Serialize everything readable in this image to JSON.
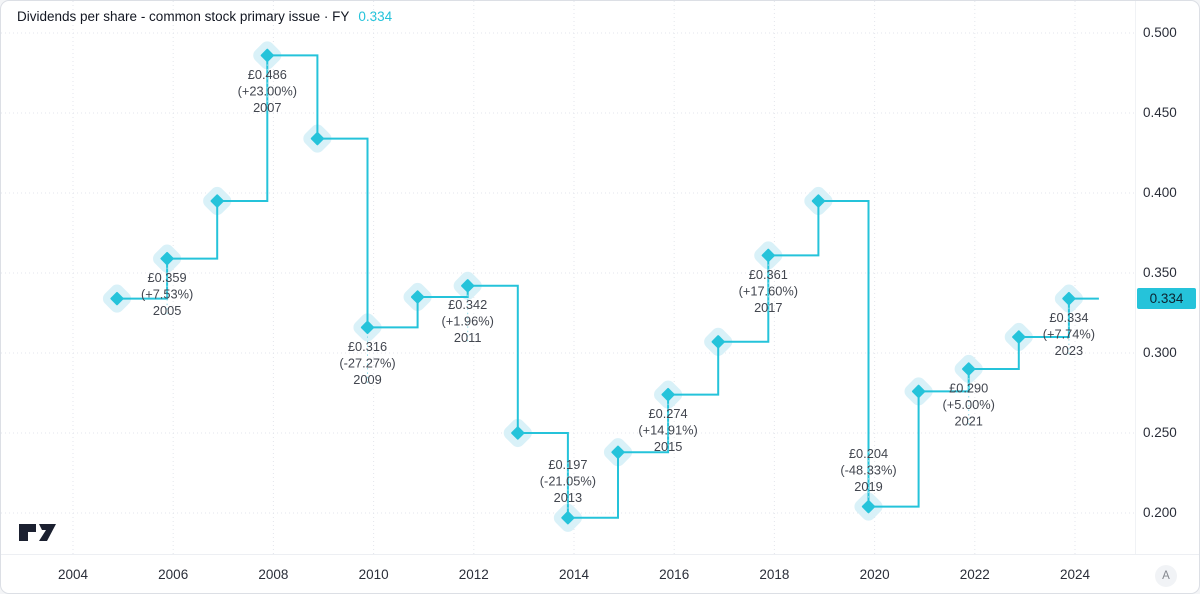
{
  "header": {
    "title": "Dividends per share - common stock primary issue · FY",
    "last_value": "0.334"
  },
  "chart_data": {
    "type": "line",
    "subtype": "step-line-with-diamond-markers",
    "title": "Dividends per share - common stock primary issue · FY",
    "currency": "£",
    "xlabel": "",
    "ylabel": "",
    "grid": "dotted-both-axes",
    "legend_position": "none",
    "ylim": [
      0.174,
      0.52
    ],
    "xlim_years": [
      2003.1,
      2024.6
    ],
    "series": [
      {
        "name": "Dividends per share FY",
        "x": [
          2004,
          2005,
          2006,
          2007,
          2008,
          2009,
          2010,
          2011,
          2012,
          2013,
          2014,
          2015,
          2016,
          2017,
          2018,
          2019,
          2020,
          2021,
          2022,
          2023
        ],
        "values": [
          0.334,
          0.359,
          0.395,
          0.486,
          0.434,
          0.316,
          0.335,
          0.342,
          0.25,
          0.197,
          0.238,
          0.274,
          0.307,
          0.361,
          0.395,
          0.204,
          0.276,
          0.29,
          0.31,
          0.334
        ]
      }
    ],
    "line_extends_right": true,
    "annotations": [
      {
        "year": "2005",
        "value_label": "£0.359",
        "change_label": "(+7.53%)",
        "side": "below"
      },
      {
        "year": "2007",
        "value_label": "£0.486",
        "change_label": "(+23.00%)",
        "side": "below"
      },
      {
        "year": "2009",
        "value_label": "£0.316",
        "change_label": "(-27.27%)",
        "side": "below"
      },
      {
        "year": "2011",
        "value_label": "£0.342",
        "change_label": "(+1.96%)",
        "side": "below"
      },
      {
        "year": "2013",
        "value_label": "£0.197",
        "change_label": "(-21.05%)",
        "side": "above"
      },
      {
        "year": "2015",
        "value_label": "£0.274",
        "change_label": "(+14.91%)",
        "side": "below"
      },
      {
        "year": "2017",
        "value_label": "£0.361",
        "change_label": "(+17.60%)",
        "side": "below"
      },
      {
        "year": "2019",
        "value_label": "£0.204",
        "change_label": "(-48.33%)",
        "side": "above"
      },
      {
        "year": "2021",
        "value_label": "£0.290",
        "change_label": "(+5.00%)",
        "side": "below"
      },
      {
        "year": "2023",
        "value_label": "£0.334",
        "change_label": "(+7.74%)",
        "side": "below"
      }
    ],
    "y_ticks": [
      "0.500",
      "0.450",
      "0.400",
      "0.350",
      "0.300",
      "0.250",
      "0.200"
    ],
    "x_ticks": [
      "2004",
      "2006",
      "2008",
      "2010",
      "2012",
      "2014",
      "2016",
      "2018",
      "2020",
      "2022",
      "2024"
    ],
    "last_value": "0.334",
    "colors": {
      "line": "#25c3da",
      "marker": "#25c3da",
      "marker_halo": "#d9f1f8",
      "annotation_text": "#42464f",
      "grid": "#e3e6ec",
      "badge_bg": "#25c3da",
      "badge_text": "#0c2330",
      "title_value": "#25c3da",
      "title_text": "#131722",
      "axis_text": "#2a2e39",
      "connector": "#8fdcea",
      "logo": "#1b2030"
    }
  },
  "price_axis": {
    "badge": "0.334"
  },
  "time_axis": {
    "auto_button": "A"
  }
}
